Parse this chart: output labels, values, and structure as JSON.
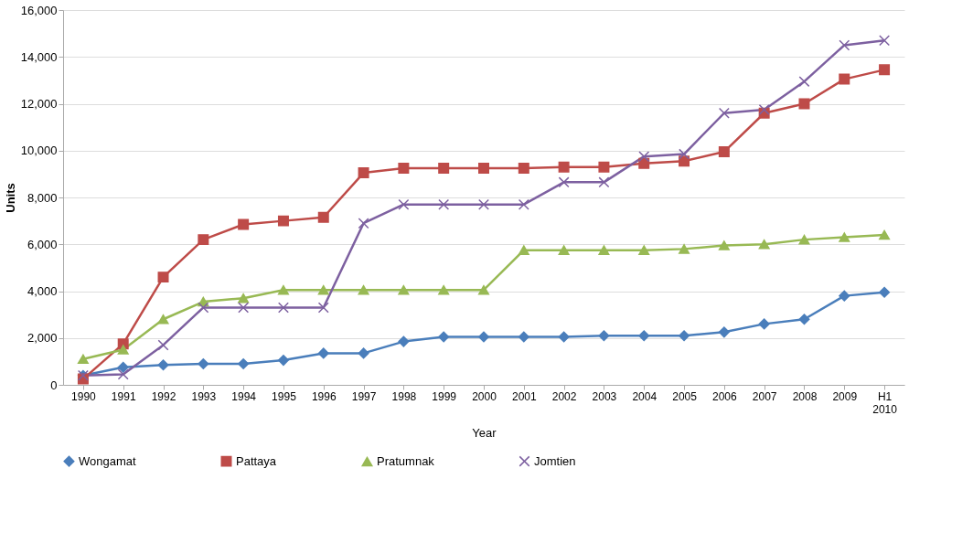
{
  "chart_data": {
    "type": "line",
    "xlabel": "Year",
    "ylabel": "Units",
    "categories": [
      "1990",
      "1991",
      "1992",
      "1993",
      "1994",
      "1995",
      "1996",
      "1997",
      "1998",
      "1999",
      "2000",
      "2001",
      "2002",
      "2003",
      "2004",
      "2005",
      "2006",
      "2007",
      "2008",
      "2009",
      "H1 2010"
    ],
    "series": [
      {
        "name": "Wongamat",
        "color": "#4a7ebb",
        "marker": "diamond",
        "values": [
          400,
          750,
          850,
          900,
          900,
          1050,
          1350,
          1350,
          1850,
          2050,
          2050,
          2050,
          2050,
          2100,
          2100,
          2100,
          2250,
          2600,
          2800,
          3800,
          3950
        ]
      },
      {
        "name": "Pattaya",
        "color": "#be4b48",
        "marker": "square",
        "values": [
          250,
          1750,
          4600,
          6200,
          6850,
          7000,
          7150,
          9050,
          9250,
          9250,
          9250,
          9250,
          9300,
          9300,
          9450,
          9550,
          9950,
          11600,
          12000,
          13050,
          13450
        ]
      },
      {
        "name": "Pratumnak",
        "color": "#98b954",
        "marker": "triangle",
        "values": [
          1100,
          1500,
          2800,
          3550,
          3700,
          4050,
          4050,
          4050,
          4050,
          4050,
          4050,
          5750,
          5750,
          5750,
          5750,
          5800,
          5950,
          6000,
          6200,
          6300,
          6400
        ]
      },
      {
        "name": "Jomtien",
        "color": "#7d60a0",
        "marker": "cross",
        "values": [
          400,
          450,
          1700,
          3300,
          3300,
          3300,
          3300,
          6900,
          7700,
          7700,
          7700,
          7700,
          8650,
          8650,
          9750,
          9850,
          11600,
          11750,
          12950,
          14500,
          14700
        ]
      }
    ],
    "ylim": [
      0,
      16000
    ],
    "yticks": [
      0,
      {
        "value": 2000,
        "label": "2,000"
      },
      {
        "value": 4000,
        "label": "4,000"
      },
      {
        "value": 6000,
        "label": "6,000"
      },
      {
        "value": 8000,
        "label": "8,000"
      },
      {
        "value": 10000,
        "label": "10,000"
      },
      {
        "value": 12000,
        "label": "12,000"
      },
      {
        "value": 14000,
        "label": "14,000"
      },
      {
        "value": 16000,
        "label": "16,000"
      }
    ],
    "grid": "y",
    "legend": "bottom",
    "line_style": "solid"
  }
}
